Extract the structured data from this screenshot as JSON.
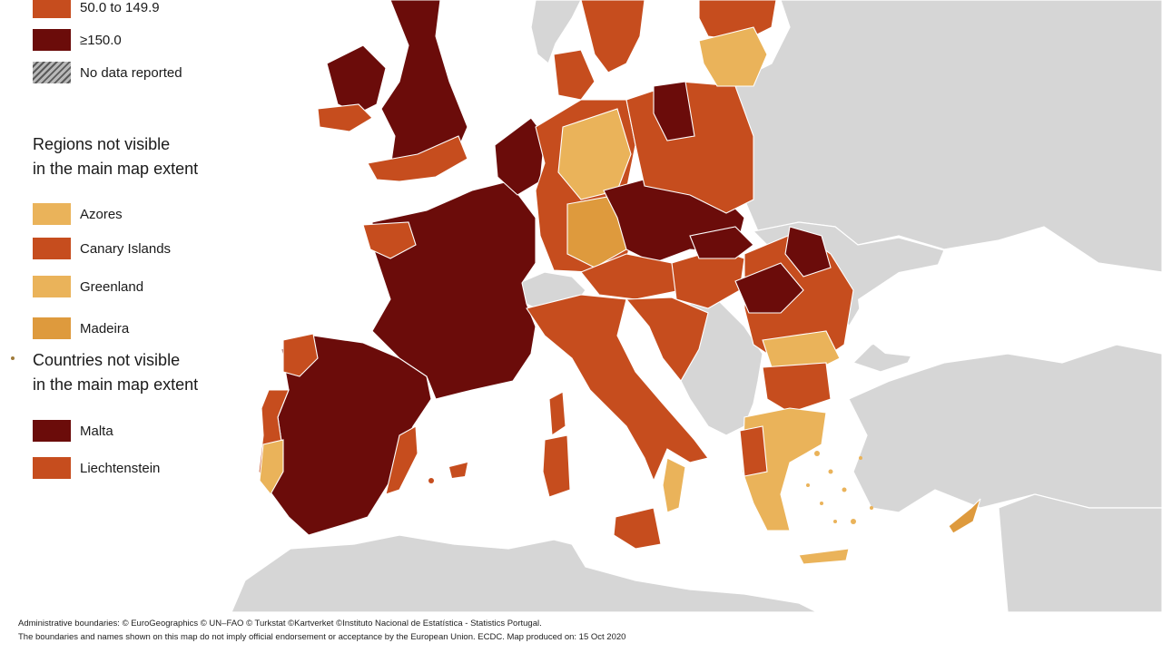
{
  "legend": {
    "classes": [
      {
        "label": "50.0 to 149.9",
        "color": "#c64d1e"
      },
      {
        "label": "≥150.0",
        "color": "#6b0c0a"
      },
      {
        "label": "No data reported",
        "color": "hatched-grey"
      }
    ],
    "regions_heading_line1": "Regions not visible",
    "regions_heading_line2": "in the main map extent",
    "regions": [
      {
        "label": "Azores",
        "color": "#eab35a"
      },
      {
        "label": "Canary Islands",
        "color": "#c64d1e"
      },
      {
        "label": "Greenland",
        "color": "#eab35a"
      },
      {
        "label": "Madeira",
        "color": "#de9a3d"
      }
    ],
    "countries_heading_line1": "Countries not visible",
    "countries_heading_line2": "in the main map extent",
    "countries": [
      {
        "label": "Malta",
        "color": "#6b0c0a"
      },
      {
        "label": "Liechtenstein",
        "color": "#c64d1e"
      }
    ]
  },
  "colors": {
    "very_high": "#6b0c0a",
    "high": "#c64d1e",
    "medium": "#de9a3d",
    "light": "#eab35a",
    "no_data_grey": "#d9d9d9",
    "outside_grey": "#d6d6d6",
    "sea": "#ffffff",
    "border": "#ffffff"
  },
  "footer": {
    "line1": "Administrative boundaries: © EuroGeographics © UN–FAO © Turkstat ©Kartverket ©Instituto Nacional de Estatística - Statistics Portugal.",
    "line2": "The boundaries and names shown on this map do not imply official endorsement or acceptance by the European Union. ECDC. Map produced on: 15 Oct 2020"
  }
}
